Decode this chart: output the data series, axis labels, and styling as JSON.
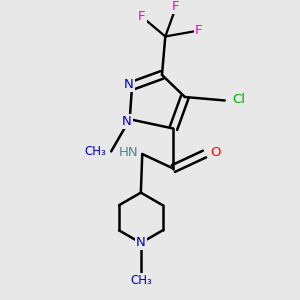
{
  "background_color": "#e8e8e8",
  "atom_colors": {
    "C": "#000000",
    "N": "#0000cc",
    "N_H": "#4a8a8a",
    "O": "#ff0000",
    "F": "#ff00cc",
    "Cl": "#00aa00",
    "H": "#777777"
  },
  "bond_color": "#000000",
  "bond_width": 1.8,
  "figsize": [
    3.0,
    3.0
  ],
  "dpi": 100,
  "xlim": [
    0,
    10
  ],
  "ylim": [
    0,
    10
  ]
}
